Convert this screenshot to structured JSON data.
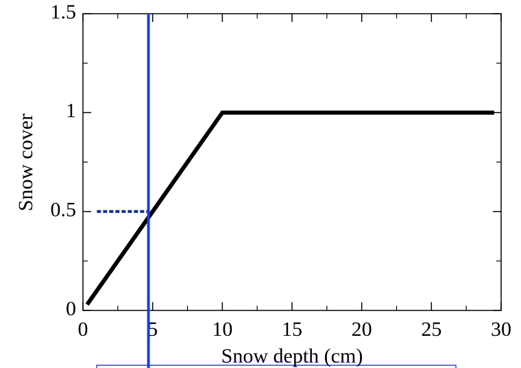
{
  "chart_data": {
    "type": "line",
    "x_label": "Snow depth (cm)",
    "y_label": "Snow cover",
    "xlim": [
      0,
      30
    ],
    "ylim": [
      0,
      1.5
    ],
    "xticks": [
      0,
      5,
      10,
      15,
      20,
      25,
      30
    ],
    "yticks": [
      0,
      0.5,
      1,
      1.5
    ],
    "xminorticks": [
      2.5,
      7.5,
      12.5,
      17.5,
      22.5,
      27.5
    ],
    "yminorticks": [
      0.25,
      0.75,
      1.25
    ],
    "series": [
      {
        "color": "#000000",
        "x": [
          0.3,
          10,
          29.5
        ],
        "values": [
          0.03,
          1,
          1
        ]
      }
    ],
    "vline": {
      "x": 4.7,
      "color": "#1a3ee0"
    },
    "hline": {
      "y": 0.5,
      "x": [
        1,
        4.7
      ],
      "color": "#0a2a8a"
    }
  }
}
